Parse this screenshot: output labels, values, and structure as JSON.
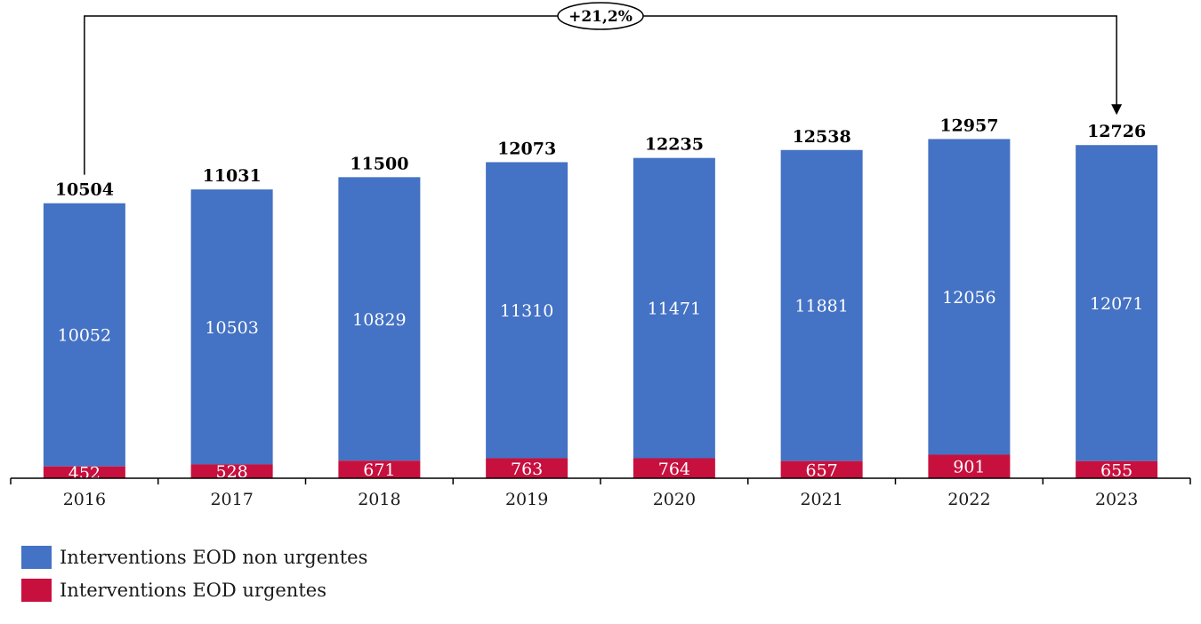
{
  "chart_data": {
    "type": "bar",
    "stacked": true,
    "categories": [
      "2016",
      "2017",
      "2018",
      "2019",
      "2020",
      "2021",
      "2022",
      "2023"
    ],
    "series": [
      {
        "name": "Interventions EOD urgentes",
        "color": "#C8103E",
        "values": [
          452,
          528,
          671,
          763,
          764,
          657,
          901,
          655
        ]
      },
      {
        "name": "Interventions EOD non urgentes",
        "color": "#4472C4",
        "values": [
          10052,
          10503,
          10829,
          11310,
          11471,
          11881,
          12056,
          12071
        ]
      }
    ],
    "totals": [
      10504,
      11031,
      11500,
      12073,
      12235,
      12538,
      12957,
      12726
    ],
    "annotation": {
      "text": "+21,2%",
      "from": "2016",
      "to": "2023"
    },
    "ylim": [
      0,
      13000
    ],
    "grid": false,
    "legend_position": "bottom-left"
  },
  "legend": [
    {
      "label": "Interventions EOD non urgentes",
      "color": "#4472C4"
    },
    {
      "label": "Interventions EOD urgentes",
      "color": "#C8103E"
    }
  ]
}
